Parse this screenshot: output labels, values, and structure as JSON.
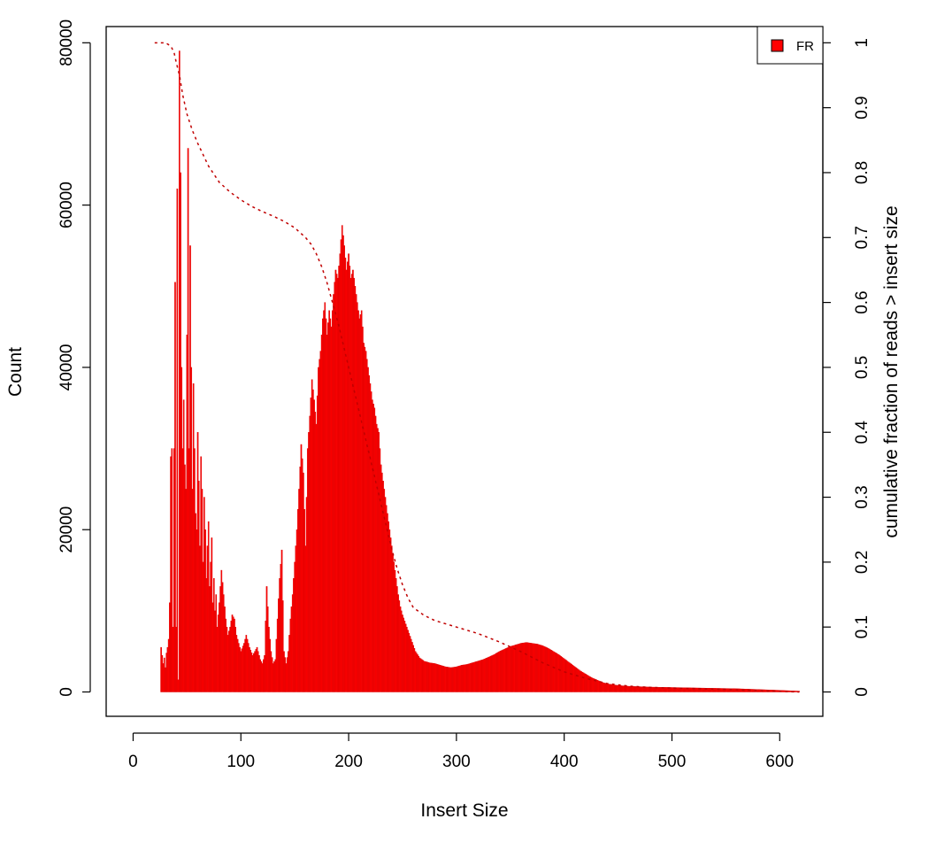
{
  "chart_data": {
    "type": "bar",
    "xlabel": "Insert Size",
    "ylabel": "Count",
    "y2label": "cumulative fraction of reads > insert size",
    "xlim": [
      -25,
      640
    ],
    "ylim": [
      -3000,
      82000
    ],
    "y2lim": [
      -0.0375,
      1.025
    ],
    "x_ticks": [
      0,
      100,
      200,
      300,
      400,
      500,
      600
    ],
    "y_ticks": [
      0,
      20000,
      40000,
      60000,
      80000
    ],
    "y2_ticks": [
      0,
      0.1,
      0.2,
      0.3,
      0.4,
      0.5,
      0.6,
      0.7,
      0.8,
      0.9,
      1
    ],
    "legend": {
      "position": "top-right",
      "entries": [
        "FR"
      ]
    },
    "grid": false,
    "bar_color": "#ff0000",
    "histogram_anchors": [
      [
        20,
        0
      ],
      [
        25,
        0
      ],
      [
        26,
        5500
      ],
      [
        27,
        4500
      ],
      [
        28,
        3500
      ],
      [
        29,
        4200
      ],
      [
        30,
        3000
      ],
      [
        31,
        4800
      ],
      [
        32,
        5500
      ],
      [
        33,
        6500
      ],
      [
        34,
        11000
      ],
      [
        35,
        29000
      ],
      [
        36,
        30000
      ],
      [
        37,
        8000
      ],
      [
        38,
        30000
      ],
      [
        39,
        50500
      ],
      [
        40,
        8000
      ],
      [
        41,
        62000
      ],
      [
        42,
        1500
      ],
      [
        43,
        79000
      ],
      [
        44,
        64000
      ],
      [
        45,
        40000
      ],
      [
        46,
        30000
      ],
      [
        47,
        36000
      ],
      [
        48,
        28000
      ],
      [
        49,
        25000
      ],
      [
        50,
        44000
      ],
      [
        51,
        67000
      ],
      [
        52,
        30000
      ],
      [
        53,
        55000
      ],
      [
        54,
        40000
      ],
      [
        55,
        25000
      ],
      [
        56,
        38000
      ],
      [
        57,
        30000
      ],
      [
        58,
        22000
      ],
      [
        59,
        20000
      ],
      [
        60,
        32000
      ],
      [
        61,
        26000
      ],
      [
        62,
        18000
      ],
      [
        63,
        29000
      ],
      [
        64,
        25000
      ],
      [
        65,
        16000
      ],
      [
        66,
        24000
      ],
      [
        67,
        20000
      ],
      [
        68,
        14000
      ],
      [
        69,
        18000
      ],
      [
        70,
        21000
      ],
      [
        71,
        13000
      ],
      [
        72,
        16000
      ],
      [
        73,
        19000
      ],
      [
        74,
        11000
      ],
      [
        75,
        14000
      ],
      [
        76,
        10000
      ],
      [
        77,
        12000
      ],
      [
        78,
        8000
      ],
      [
        80,
        11000
      ],
      [
        82,
        15000
      ],
      [
        84,
        12000
      ],
      [
        86,
        9000
      ],
      [
        88,
        7000
      ],
      [
        90,
        8000
      ],
      [
        92,
        9500
      ],
      [
        94,
        9000
      ],
      [
        96,
        7000
      ],
      [
        98,
        6000
      ],
      [
        100,
        5000
      ],
      [
        103,
        6000
      ],
      [
        105,
        7000
      ],
      [
        108,
        5500
      ],
      [
        111,
        4500
      ],
      [
        113,
        5000
      ],
      [
        115,
        5500
      ],
      [
        118,
        4000
      ],
      [
        120,
        3500
      ],
      [
        122,
        4500
      ],
      [
        124,
        13000
      ],
      [
        126,
        8000
      ],
      [
        128,
        5000
      ],
      [
        130,
        3500
      ],
      [
        132,
        4000
      ],
      [
        134,
        9000
      ],
      [
        136,
        14000
      ],
      [
        138,
        17500
      ],
      [
        140,
        5000
      ],
      [
        142,
        3500
      ],
      [
        144,
        5000
      ],
      [
        146,
        9000
      ],
      [
        148,
        12000
      ],
      [
        150,
        16000
      ],
      [
        152,
        20000
      ],
      [
        154,
        25000
      ],
      [
        156,
        30500
      ],
      [
        158,
        27000
      ],
      [
        160,
        18000
      ],
      [
        162,
        30000
      ],
      [
        164,
        34000
      ],
      [
        166,
        38500
      ],
      [
        168,
        36000
      ],
      [
        170,
        33000
      ],
      [
        172,
        40000
      ],
      [
        174,
        42000
      ],
      [
        176,
        46000
      ],
      [
        178,
        48000
      ],
      [
        180,
        44000
      ],
      [
        182,
        47000
      ],
      [
        184,
        45000
      ],
      [
        186,
        49000
      ],
      [
        188,
        52000
      ],
      [
        190,
        51000
      ],
      [
        192,
        54000
      ],
      [
        194,
        57500
      ],
      [
        196,
        55000
      ],
      [
        198,
        52000
      ],
      [
        200,
        54000
      ],
      [
        202,
        51000
      ],
      [
        204,
        52000
      ],
      [
        206,
        50000
      ],
      [
        208,
        48000
      ],
      [
        210,
        46000
      ],
      [
        212,
        47000
      ],
      [
        214,
        43000
      ],
      [
        216,
        42000
      ],
      [
        218,
        40000
      ],
      [
        220,
        38000
      ],
      [
        222,
        36000
      ],
      [
        224,
        35000
      ],
      [
        226,
        33000
      ],
      [
        228,
        32000
      ],
      [
        230,
        28000
      ],
      [
        232,
        26000
      ],
      [
        234,
        24000
      ],
      [
        236,
        22000
      ],
      [
        238,
        20000
      ],
      [
        240,
        18000
      ],
      [
        242,
        16000
      ],
      [
        244,
        14000
      ],
      [
        246,
        12000
      ],
      [
        248,
        10500
      ],
      [
        250,
        9500
      ],
      [
        254,
        8000
      ],
      [
        258,
        6500
      ],
      [
        262,
        5000
      ],
      [
        266,
        4200
      ],
      [
        270,
        3800
      ],
      [
        275,
        3600
      ],
      [
        280,
        3500
      ],
      [
        285,
        3300
      ],
      [
        290,
        3100
      ],
      [
        295,
        3000
      ],
      [
        300,
        3100
      ],
      [
        305,
        3300
      ],
      [
        310,
        3400
      ],
      [
        315,
        3600
      ],
      [
        320,
        3800
      ],
      [
        325,
        4000
      ],
      [
        330,
        4300
      ],
      [
        335,
        4600
      ],
      [
        340,
        5000
      ],
      [
        345,
        5300
      ],
      [
        350,
        5600
      ],
      [
        355,
        5800
      ],
      [
        360,
        6000
      ],
      [
        365,
        6100
      ],
      [
        370,
        6000
      ],
      [
        375,
        5900
      ],
      [
        380,
        5700
      ],
      [
        385,
        5400
      ],
      [
        390,
        5000
      ],
      [
        395,
        4600
      ],
      [
        400,
        4100
      ],
      [
        405,
        3600
      ],
      [
        410,
        3100
      ],
      [
        415,
        2600
      ],
      [
        420,
        2200
      ],
      [
        425,
        1800
      ],
      [
        430,
        1500
      ],
      [
        435,
        1200
      ],
      [
        440,
        1000
      ],
      [
        450,
        800
      ],
      [
        460,
        700
      ],
      [
        470,
        650
      ],
      [
        480,
        600
      ],
      [
        500,
        550
      ],
      [
        520,
        500
      ],
      [
        540,
        450
      ],
      [
        560,
        400
      ],
      [
        580,
        300
      ],
      [
        600,
        200
      ],
      [
        618,
        100
      ]
    ],
    "cumulative_fraction": [
      [
        20,
        1.0
      ],
      [
        30,
        1.0
      ],
      [
        35,
        0.995
      ],
      [
        38,
        0.985
      ],
      [
        40,
        0.97
      ],
      [
        43,
        0.95
      ],
      [
        46,
        0.92
      ],
      [
        50,
        0.89
      ],
      [
        55,
        0.865
      ],
      [
        60,
        0.845
      ],
      [
        70,
        0.81
      ],
      [
        80,
        0.785
      ],
      [
        90,
        0.77
      ],
      [
        100,
        0.758
      ],
      [
        110,
        0.748
      ],
      [
        120,
        0.74
      ],
      [
        130,
        0.733
      ],
      [
        140,
        0.725
      ],
      [
        150,
        0.715
      ],
      [
        160,
        0.7
      ],
      [
        165,
        0.69
      ],
      [
        170,
        0.675
      ],
      [
        175,
        0.655
      ],
      [
        180,
        0.63
      ],
      [
        185,
        0.6
      ],
      [
        190,
        0.57
      ],
      [
        195,
        0.535
      ],
      [
        200,
        0.5
      ],
      [
        205,
        0.465
      ],
      [
        210,
        0.43
      ],
      [
        215,
        0.395
      ],
      [
        220,
        0.36
      ],
      [
        225,
        0.325
      ],
      [
        230,
        0.29
      ],
      [
        235,
        0.255
      ],
      [
        240,
        0.22
      ],
      [
        245,
        0.19
      ],
      [
        250,
        0.165
      ],
      [
        255,
        0.145
      ],
      [
        260,
        0.13
      ],
      [
        270,
        0.118
      ],
      [
        280,
        0.11
      ],
      [
        300,
        0.1
      ],
      [
        320,
        0.09
      ],
      [
        340,
        0.077
      ],
      [
        360,
        0.062
      ],
      [
        380,
        0.045
      ],
      [
        400,
        0.031
      ],
      [
        420,
        0.021
      ],
      [
        440,
        0.013
      ],
      [
        460,
        0.009
      ],
      [
        480,
        0.007
      ],
      [
        500,
        0.006
      ],
      [
        550,
        0.004
      ],
      [
        600,
        0.001
      ],
      [
        618,
        0.0
      ]
    ]
  }
}
